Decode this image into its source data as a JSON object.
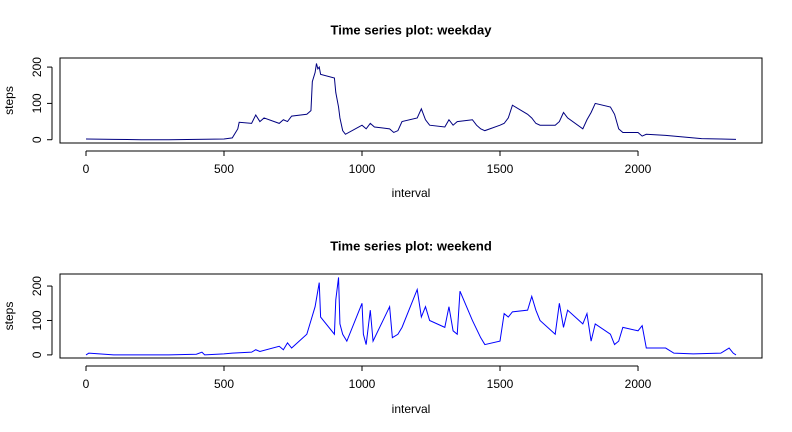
{
  "chart_data": [
    {
      "type": "line",
      "title": "Time series plot: weekday",
      "xlabel": "interval",
      "ylabel": "steps",
      "color": "#000080",
      "x": [
        0,
        100,
        200,
        300,
        400,
        500,
        530,
        550,
        555,
        600,
        615,
        630,
        645,
        700,
        715,
        730,
        745,
        800,
        815,
        820,
        830,
        835,
        840,
        845,
        850,
        900,
        905,
        915,
        920,
        930,
        940,
        1000,
        1015,
        1030,
        1045,
        1100,
        1115,
        1130,
        1145,
        1200,
        1215,
        1230,
        1245,
        1300,
        1315,
        1330,
        1345,
        1400,
        1415,
        1430,
        1445,
        1500,
        1515,
        1530,
        1545,
        1600,
        1615,
        1630,
        1645,
        1700,
        1715,
        1730,
        1745,
        1800,
        1815,
        1830,
        1845,
        1900,
        1915,
        1930,
        1945,
        2000,
        2015,
        2030,
        2100,
        2130,
        2200,
        2230,
        2300,
        2355
      ],
      "values": [
        2,
        1,
        0,
        0,
        1,
        2,
        5,
        30,
        48,
        45,
        68,
        50,
        60,
        45,
        55,
        50,
        65,
        70,
        80,
        160,
        185,
        210,
        195,
        200,
        180,
        170,
        130,
        90,
        60,
        25,
        15,
        40,
        30,
        45,
        35,
        30,
        20,
        25,
        50,
        60,
        85,
        55,
        40,
        35,
        55,
        40,
        50,
        55,
        40,
        30,
        25,
        40,
        45,
        60,
        95,
        70,
        60,
        45,
        40,
        40,
        50,
        75,
        60,
        30,
        55,
        75,
        100,
        90,
        70,
        30,
        20,
        20,
        10,
        15,
        12,
        10,
        5,
        3,
        2,
        1
      ],
      "xlim": [
        -94.2,
        2449.2
      ],
      "ylim": [
        -9,
        225
      ],
      "xticks": [
        0,
        500,
        1000,
        1500,
        2000
      ],
      "yticks": [
        0,
        100,
        200
      ]
    },
    {
      "type": "line",
      "title": "Time series plot: weekend",
      "xlabel": "interval",
      "ylabel": "steps",
      "color": "#0000ff",
      "x": [
        0,
        10,
        100,
        200,
        300,
        400,
        420,
        430,
        500,
        530,
        600,
        615,
        630,
        700,
        715,
        730,
        745,
        800,
        815,
        830,
        845,
        850,
        900,
        905,
        915,
        920,
        930,
        945,
        1000,
        1005,
        1015,
        1030,
        1040,
        1100,
        1110,
        1130,
        1145,
        1200,
        1215,
        1230,
        1245,
        1300,
        1315,
        1330,
        1345,
        1355,
        1400,
        1415,
        1430,
        1445,
        1500,
        1515,
        1530,
        1545,
        1600,
        1615,
        1630,
        1645,
        1700,
        1715,
        1730,
        1745,
        1800,
        1815,
        1830,
        1845,
        1900,
        1915,
        1930,
        1945,
        2000,
        2015,
        2030,
        2100,
        2130,
        2200,
        2300,
        2330,
        2345,
        2355
      ],
      "values": [
        0,
        5,
        0,
        0,
        0,
        2,
        8,
        0,
        3,
        5,
        8,
        15,
        10,
        25,
        15,
        35,
        20,
        60,
        100,
        140,
        210,
        110,
        60,
        160,
        225,
        90,
        60,
        40,
        150,
        60,
        30,
        130,
        40,
        140,
        50,
        60,
        80,
        190,
        110,
        140,
        100,
        80,
        140,
        70,
        60,
        185,
        100,
        75,
        50,
        30,
        40,
        120,
        110,
        125,
        130,
        170,
        130,
        100,
        60,
        150,
        80,
        130,
        90,
        120,
        40,
        90,
        60,
        30,
        40,
        80,
        70,
        85,
        20,
        20,
        5,
        3,
        5,
        20,
        5,
        0
      ],
      "xlim": [
        -94.2,
        2449.2
      ],
      "ylim": [
        -9,
        235
      ],
      "xticks": [
        0,
        500,
        1000,
        1500,
        2000
      ],
      "yticks": [
        0,
        100,
        200
      ]
    }
  ]
}
